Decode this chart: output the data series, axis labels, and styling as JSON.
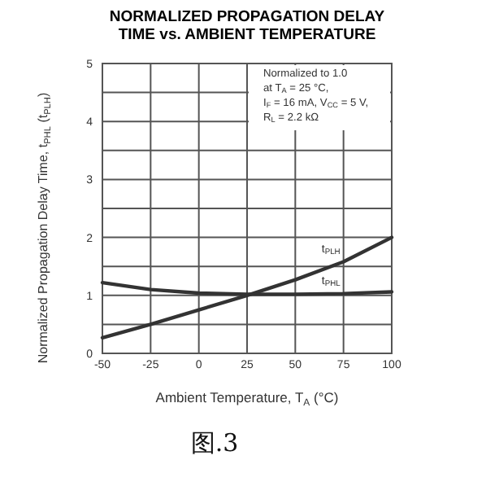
{
  "chart_data": {
    "type": "line",
    "title": "NORMALIZED PROPAGATION DELAY\nTIME vs. AMBIENT TEMPERATURE",
    "xlabel": "Ambient Temperature, T$_{A}$ (°C)",
    "ylabel": "Normalized Propagation Delay Time, t$_{PHL}$ (t$_{PLH}$)",
    "x": [
      -50,
      -25,
      0,
      25,
      50,
      75,
      100
    ],
    "series": [
      {
        "name": "t$_{PLH}$",
        "color": "#333333",
        "values": [
          0.27,
          0.5,
          0.75,
          1.0,
          1.27,
          1.58,
          2.0
        ]
      },
      {
        "name": "t$_{PHL}$",
        "color": "#333333",
        "values": [
          1.22,
          1.1,
          1.04,
          1.02,
          1.02,
          1.03,
          1.06
        ]
      }
    ],
    "xlim": [
      -50,
      100
    ],
    "xticks": [
      -50,
      -25,
      0,
      25,
      50,
      75,
      100
    ],
    "ylim": [
      0,
      5
    ],
    "yticks": [
      0,
      {
        "value": 0.5,
        "label": null
      },
      1,
      {
        "value": 1.5,
        "label": null
      },
      2,
      {
        "value": 2.5,
        "label": null
      },
      3,
      {
        "value": 3.5,
        "label": null
      },
      4,
      {
        "value": 4.5,
        "label": null
      },
      5
    ],
    "grid": true,
    "legend": false,
    "marker": "none",
    "line_style": "solid",
    "annotations": [
      "Normalized to 1.0",
      "at T$_{A}$ = 25 °C,",
      "I$_{F}$ = 16 mA, V$_{CC}$ = 5 V,",
      "R$_{L}$ = 2.2 kΩ",
      "图.3"
    ]
  }
}
